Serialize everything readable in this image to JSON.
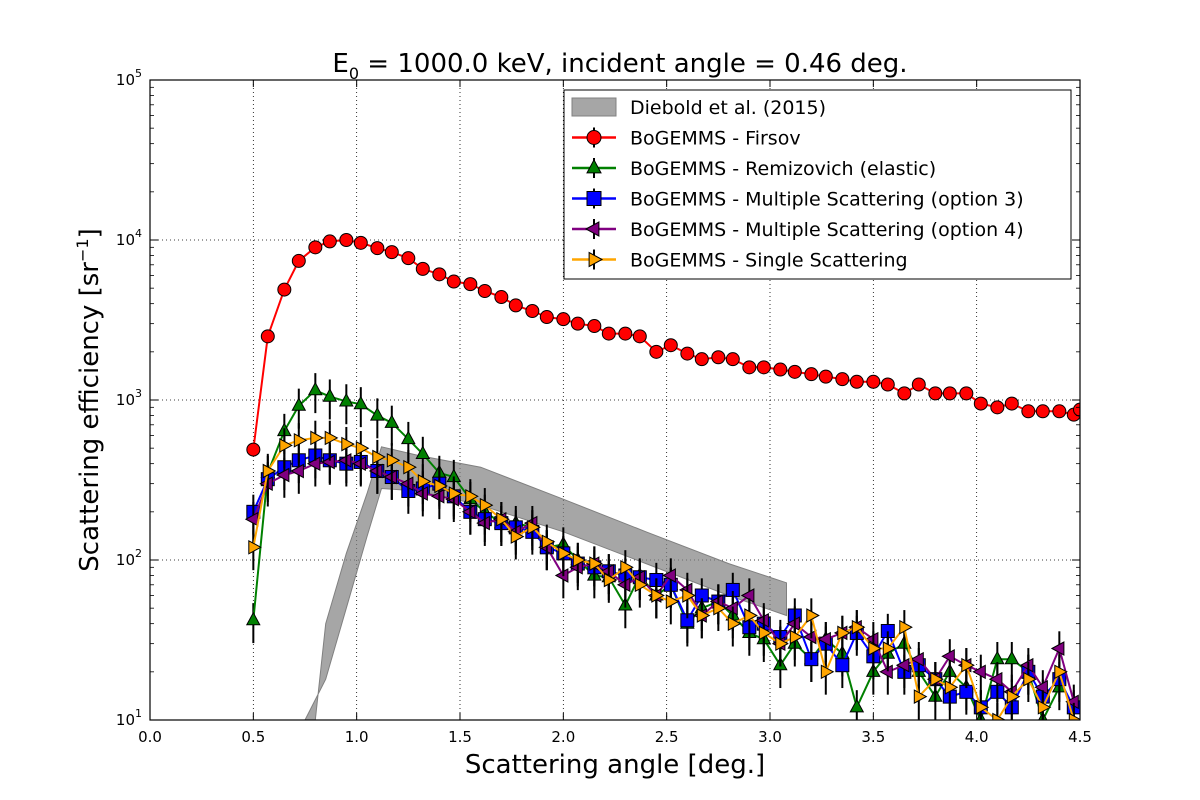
{
  "chart_data": {
    "type": "scatter",
    "title_prefix": "E",
    "title_sub": "0",
    "title_rest": " = 1000.0 keV, incident angle = 0.46 deg.",
    "xlabel": "Scattering angle [deg.]",
    "ylabel_main": "Scattering efficiency [sr",
    "ylabel_sup": "−1",
    "ylabel_end": "]",
    "xlim": [
      0.0,
      4.5
    ],
    "ylim": [
      10,
      100000
    ],
    "yscale": "log",
    "grid": true,
    "legend_position": "top-right",
    "x_ticks": [
      "0.0",
      "0.5",
      "1.0",
      "1.5",
      "2.0",
      "2.5",
      "3.0",
      "3.5",
      "4.0",
      "4.5"
    ],
    "y_ticks": [
      {
        "base": "10",
        "exp": "1",
        "value": 10
      },
      {
        "base": "10",
        "exp": "2",
        "value": 100
      },
      {
        "base": "10",
        "exp": "3",
        "value": 1000
      },
      {
        "base": "10",
        "exp": "4",
        "value": 10000
      },
      {
        "base": "10",
        "exp": "5",
        "value": 100000
      }
    ],
    "band": {
      "name": "Diebold et al. (2015)",
      "color": "#808080",
      "upper": [
        [
          0.8,
          10
        ],
        [
          0.85,
          40
        ],
        [
          0.95,
          110
        ],
        [
          1.05,
          260
        ],
        [
          1.12,
          510
        ],
        [
          1.3,
          450
        ],
        [
          1.6,
          380
        ],
        [
          2.0,
          240
        ],
        [
          2.4,
          150
        ],
        [
          2.8,
          95
        ],
        [
          3.08,
          72
        ]
      ],
      "lower": [
        [
          3.08,
          45
        ],
        [
          2.8,
          60
        ],
        [
          2.4,
          95
        ],
        [
          2.0,
          150
        ],
        [
          1.6,
          220
        ],
        [
          1.3,
          270
        ],
        [
          1.12,
          280
        ],
        [
          1.05,
          140
        ],
        [
          0.95,
          50
        ],
        [
          0.85,
          18
        ],
        [
          0.75,
          10
        ],
        [
          0.73,
          10
        ]
      ]
    },
    "series": [
      {
        "name": "BoGEMMS - Firsov",
        "color": "#ff0000",
        "marker": "circle",
        "x": [
          0.5,
          0.57,
          0.65,
          0.72,
          0.8,
          0.87,
          0.95,
          1.02,
          1.1,
          1.17,
          1.25,
          1.32,
          1.4,
          1.47,
          1.55,
          1.62,
          1.7,
          1.77,
          1.85,
          1.92,
          2.0,
          2.07,
          2.15,
          2.22,
          2.3,
          2.37,
          2.45,
          2.52,
          2.6,
          2.67,
          2.75,
          2.82,
          2.9,
          2.97,
          3.05,
          3.12,
          3.2,
          3.27,
          3.35,
          3.42,
          3.5,
          3.57,
          3.65,
          3.72,
          3.8,
          3.87,
          3.95,
          4.02,
          4.1,
          4.17,
          4.25,
          4.32,
          4.4,
          4.47,
          4.5
        ],
        "y": [
          490,
          2500,
          4900,
          7400,
          9000,
          9800,
          10000,
          9600,
          8900,
          8400,
          7700,
          6600,
          6100,
          5500,
          5300,
          4800,
          4400,
          3900,
          3600,
          3300,
          3200,
          3000,
          2900,
          2600,
          2600,
          2500,
          2000,
          2200,
          1950,
          1800,
          1850,
          1800,
          1600,
          1600,
          1550,
          1500,
          1450,
          1400,
          1350,
          1300,
          1300,
          1250,
          1100,
          1250,
          1100,
          1100,
          1100,
          950,
          900,
          950,
          850,
          850,
          850,
          810,
          870
        ]
      },
      {
        "name": "BoGEMMS - Remizovich (elastic)",
        "color": "#008000",
        "marker": "triangle-up",
        "x": [
          0.5,
          0.57,
          0.65,
          0.72,
          0.8,
          0.87,
          0.95,
          1.02,
          1.1,
          1.17,
          1.25,
          1.32,
          1.4,
          1.47,
          1.55,
          1.62,
          1.7,
          1.77,
          1.85,
          1.92,
          2.0,
          2.07,
          2.15,
          2.22,
          2.3,
          2.37,
          2.45,
          2.52,
          2.6,
          2.67,
          2.75,
          2.82,
          2.9,
          2.97,
          3.05,
          3.12,
          3.2,
          3.27,
          3.35,
          3.42,
          3.5,
          3.57,
          3.65,
          3.72,
          3.8,
          3.87,
          3.95,
          4.02,
          4.1,
          4.17,
          4.25,
          4.32,
          4.4
        ],
        "y": [
          42,
          350,
          640,
          920,
          1150,
          1050,
          980,
          940,
          800,
          720,
          570,
          460,
          350,
          330,
          240,
          200,
          170,
          170,
          160,
          120,
          125,
          100,
          80,
          78,
          52,
          80,
          60,
          70,
          40,
          50,
          55,
          45,
          35,
          32,
          22,
          30,
          24,
          32,
          26,
          12,
          20,
          26,
          30,
          20,
          14,
          20,
          16,
          10,
          24,
          24,
          20,
          10,
          16
        ]
      },
      {
        "name": "BoGEMMS - Multiple Scattering (option 3)",
        "color": "#0000ff",
        "marker": "square",
        "x": [
          0.5,
          0.57,
          0.65,
          0.72,
          0.8,
          0.87,
          0.95,
          1.02,
          1.1,
          1.17,
          1.25,
          1.32,
          1.4,
          1.47,
          1.55,
          1.62,
          1.7,
          1.77,
          1.85,
          1.92,
          2.0,
          2.07,
          2.15,
          2.22,
          2.3,
          2.37,
          2.45,
          2.52,
          2.6,
          2.67,
          2.75,
          2.82,
          2.9,
          2.97,
          3.05,
          3.12,
          3.2,
          3.27,
          3.35,
          3.42,
          3.5,
          3.57,
          3.65,
          3.72,
          3.8,
          3.87,
          3.95,
          4.02,
          4.1,
          4.17,
          4.25,
          4.32,
          4.4,
          4.47
        ],
        "y": [
          200,
          320,
          380,
          420,
          450,
          420,
          400,
          410,
          360,
          330,
          270,
          280,
          300,
          250,
          200,
          180,
          170,
          160,
          150,
          120,
          110,
          95,
          90,
          85,
          80,
          78,
          75,
          70,
          42,
          60,
          55,
          65,
          38,
          40,
          33,
          45,
          24,
          30,
          22,
          35,
          25,
          36,
          20,
          22,
          18,
          14,
          15,
          12,
          15,
          12,
          20,
          14,
          18,
          12
        ]
      },
      {
        "name": "BoGEMMS - Multiple Scattering (option 4)",
        "color": "#800080",
        "marker": "triangle-left",
        "x": [
          0.5,
          0.57,
          0.65,
          0.72,
          0.8,
          0.87,
          0.95,
          1.02,
          1.1,
          1.17,
          1.25,
          1.32,
          1.4,
          1.47,
          1.55,
          1.62,
          1.7,
          1.77,
          1.85,
          1.92,
          2.0,
          2.07,
          2.15,
          2.22,
          2.3,
          2.37,
          2.45,
          2.52,
          2.6,
          2.67,
          2.75,
          2.82,
          2.9,
          2.97,
          3.05,
          3.12,
          3.2,
          3.27,
          3.35,
          3.42,
          3.5,
          3.57,
          3.65,
          3.72,
          3.8,
          3.87,
          3.95,
          4.02,
          4.1,
          4.17,
          4.25,
          4.32,
          4.4,
          4.47
        ],
        "y": [
          180,
          300,
          340,
          360,
          400,
          410,
          420,
          400,
          360,
          330,
          300,
          260,
          250,
          240,
          200,
          170,
          180,
          150,
          170,
          120,
          80,
          90,
          95,
          85,
          70,
          78,
          60,
          80,
          65,
          45,
          55,
          50,
          60,
          42,
          30,
          40,
          33,
          32,
          35,
          38,
          32,
          20,
          22,
          24,
          18,
          25,
          22,
          20,
          18,
          15,
          22,
          16,
          28,
          13
        ]
      },
      {
        "name": "BoGEMMS - Single Scattering",
        "color": "#ffa500",
        "marker": "triangle-right",
        "x": [
          0.5,
          0.57,
          0.65,
          0.72,
          0.8,
          0.87,
          0.95,
          1.02,
          1.1,
          1.17,
          1.25,
          1.32,
          1.4,
          1.47,
          1.55,
          1.62,
          1.7,
          1.77,
          1.85,
          1.92,
          2.0,
          2.07,
          2.15,
          2.22,
          2.3,
          2.37,
          2.45,
          2.52,
          2.6,
          2.67,
          2.75,
          2.82,
          2.9,
          2.97,
          3.05,
          3.12,
          3.2,
          3.27,
          3.35,
          3.42,
          3.5,
          3.57,
          3.65,
          3.72,
          3.8,
          3.87,
          3.95,
          4.02,
          4.1,
          4.17,
          4.25,
          4.32,
          4.4,
          4.47
        ],
        "y": [
          120,
          360,
          520,
          560,
          580,
          580,
          530,
          500,
          440,
          420,
          380,
          310,
          290,
          260,
          250,
          220,
          180,
          140,
          160,
          130,
          110,
          100,
          95,
          75,
          90,
          70,
          60,
          55,
          60,
          45,
          50,
          40,
          45,
          35,
          30,
          33,
          45,
          20,
          35,
          38,
          28,
          28,
          38,
          14,
          18,
          16,
          22,
          12,
          10,
          14,
          18,
          12,
          20,
          10
        ]
      }
    ]
  }
}
